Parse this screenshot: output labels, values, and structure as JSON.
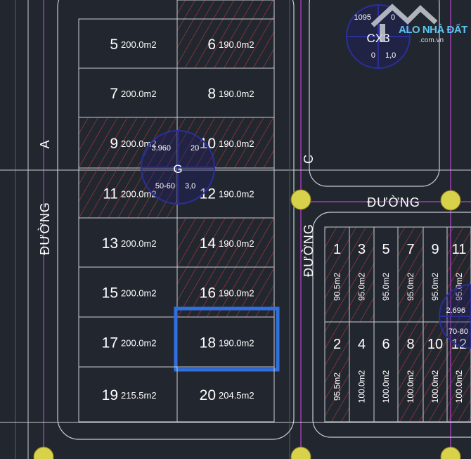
{
  "colors": {
    "background": "#22272f",
    "plot_line": "#c9ccd1",
    "hatch": "#b03a3a",
    "road_axis": "#9b3fb0",
    "survey_circle": "#2a2f9a",
    "highlight": "#2f6fe0",
    "node": "#d8d24a"
  },
  "roads": {
    "road_a_name": "ĐƯỜNG",
    "road_a_letter": "A",
    "road_c_name": "ĐƯỜNG",
    "road_c_letter": "C",
    "road_horizontal_name": "ĐƯỜNG"
  },
  "survey_points": [
    {
      "label": "G",
      "top_left": "3.960",
      "top_right": "20",
      "bottom_left": "50-60",
      "bottom_right": "3,0"
    },
    {
      "label": "CX3",
      "top_left": "1095",
      "top_right": "0",
      "bottom_left": "0",
      "bottom_right": "1,0"
    },
    {
      "label": "",
      "top_left": "2.696",
      "bottom_left": "70-80"
    }
  ],
  "left_block": {
    "plots": [
      {
        "number": "5",
        "area": "200.0m2",
        "hatched": false
      },
      {
        "number": "6",
        "area": "190.0m2",
        "hatched": true
      },
      {
        "number": "7",
        "area": "200.0m2",
        "hatched": false
      },
      {
        "number": "8",
        "area": "190.0m2",
        "hatched": false
      },
      {
        "number": "9",
        "area": "200.0m2",
        "hatched": true
      },
      {
        "number": "10",
        "area": "190.0m2",
        "hatched": true
      },
      {
        "number": "11",
        "area": "200.0m2",
        "hatched": true
      },
      {
        "number": "12",
        "area": "190.0m2",
        "hatched": false
      },
      {
        "number": "13",
        "area": "200.0m2",
        "hatched": false
      },
      {
        "number": "14",
        "area": "190.0m2",
        "hatched": true
      },
      {
        "number": "15",
        "area": "200.0m2",
        "hatched": false
      },
      {
        "number": "16",
        "area": "190.0m2",
        "hatched": true
      },
      {
        "number": "17",
        "area": "200.0m2",
        "hatched": false
      },
      {
        "number": "18",
        "area": "190.0m2",
        "hatched": false,
        "selected": true
      },
      {
        "number": "19",
        "area": "215.5m2",
        "hatched": false
      },
      {
        "number": "20",
        "area": "204.5m2",
        "hatched": false
      }
    ]
  },
  "right_block": {
    "top_row": [
      {
        "number": "1",
        "area": "90.5m2",
        "hatched": true
      },
      {
        "number": "3",
        "area": "95.0m2",
        "hatched": true
      },
      {
        "number": "5",
        "area": "95.0m2",
        "hatched": false
      },
      {
        "number": "7",
        "area": "95.0m2",
        "hatched": true
      },
      {
        "number": "9",
        "area": "95.0m2",
        "hatched": false
      },
      {
        "number": "11",
        "area": "95.0m2",
        "hatched": true
      }
    ],
    "bottom_row": [
      {
        "number": "2",
        "area": "95.5m2",
        "hatched": true
      },
      {
        "number": "4",
        "area": "100.0m2",
        "hatched": false
      },
      {
        "number": "6",
        "area": "100.0m2",
        "hatched": false
      },
      {
        "number": "8",
        "area": "100.0m2",
        "hatched": true
      },
      {
        "number": "10",
        "area": "100.0m2",
        "hatched": true
      },
      {
        "number": "12",
        "area": "100.0m2",
        "hatched": true
      }
    ]
  },
  "watermark": {
    "name": "ALO NHÀ ĐẤT",
    "domain": ".com.vn"
  }
}
